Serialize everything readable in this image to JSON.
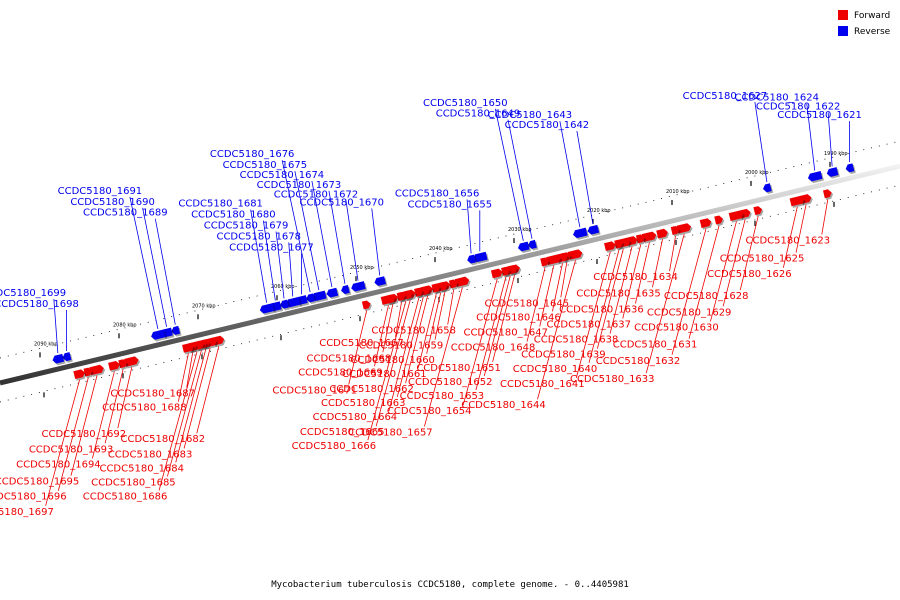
{
  "legend": [
    {
      "label": "Forward",
      "color": "#ee0000"
    },
    {
      "label": "Reverse",
      "color": "#0000ee"
    }
  ],
  "caption": "Mycobacterium tuberculosis CCDC5180, complete genome. - 0..4405981",
  "axis_ticks": [
    "1990 kbp",
    "2000 kbp",
    "2010 kbp",
    "2020 kbp",
    "2030 kbp",
    "2040 kbp",
    "2050 kbp",
    "2060 kbp",
    "2070 kbp",
    "2080 kbp",
    "2090 kbp"
  ],
  "genes": [
    {
      "id": "CCDC5180_1621",
      "strand": "reverse",
      "pos": 0.035
    },
    {
      "id": "CCDC5180_1622",
      "strand": "reverse",
      "pos": 0.055
    },
    {
      "id": "CCDC5180_1623",
      "strand": "forward",
      "pos": 0.06
    },
    {
      "id": "CCDC5180_1624",
      "strand": "reverse",
      "pos": 0.075
    },
    {
      "id": "CCDC5180_1625",
      "strand": "forward",
      "pos": 0.085
    },
    {
      "id": "CCDC5180_1626",
      "strand": "forward",
      "pos": 0.095
    },
    {
      "id": "CCDC5180_1627",
      "strand": "reverse",
      "pos": 0.13
    },
    {
      "id": "CCDC5180_1628",
      "strand": "forward",
      "pos": 0.14
    },
    {
      "id": "CCDC5180_1629",
      "strand": "forward",
      "pos": 0.155
    },
    {
      "id": "CCDC5180_1630",
      "strand": "forward",
      "pos": 0.165
    },
    {
      "id": "CCDC5180_1631",
      "strand": "forward",
      "pos": 0.185
    },
    {
      "id": "CCDC5180_1632",
      "strand": "forward",
      "pos": 0.2
    },
    {
      "id": "CCDC5180_1633",
      "strand": "forward",
      "pos": 0.225
    },
    {
      "id": "CCDC5180_1634",
      "strand": "forward",
      "pos": 0.235
    },
    {
      "id": "CCDC5180_1635",
      "strand": "forward",
      "pos": 0.25
    },
    {
      "id": "CCDC5180_1636",
      "strand": "forward",
      "pos": 0.265
    },
    {
      "id": "CCDC5180_1637",
      "strand": "forward",
      "pos": 0.275
    },
    {
      "id": "CCDC5180_1638",
      "strand": "forward",
      "pos": 0.285
    },
    {
      "id": "CCDC5180_1639",
      "strand": "forward",
      "pos": 0.295
    },
    {
      "id": "CCDC5180_1640",
      "strand": "forward",
      "pos": 0.3
    },
    {
      "id": "CCDC5180_1641",
      "strand": "forward",
      "pos": 0.31
    },
    {
      "id": "CCDC5180_1642",
      "strand": "reverse",
      "pos": 0.33
    },
    {
      "id": "CCDC5180_1643",
      "strand": "reverse",
      "pos": 0.345
    },
    {
      "id": "CCDC5180_1644",
      "strand": "forward",
      "pos": 0.35
    },
    {
      "id": "CCDC5180_1645",
      "strand": "forward",
      "pos": 0.36
    },
    {
      "id": "CCDC5180_1646",
      "strand": "forward",
      "pos": 0.365
    },
    {
      "id": "CCDC5180_1647",
      "strand": "forward",
      "pos": 0.375
    },
    {
      "id": "CCDC5180_1648",
      "strand": "forward",
      "pos": 0.385
    },
    {
      "id": "CCDC5180_1649",
      "strand": "reverse",
      "pos": 0.4
    },
    {
      "id": "CCDC5180_1650",
      "strand": "reverse",
      "pos": 0.41
    },
    {
      "id": "CCDC5180_1651",
      "strand": "forward",
      "pos": 0.42
    },
    {
      "id": "CCDC5180_1652",
      "strand": "forward",
      "pos": 0.425
    },
    {
      "id": "CCDC5180_1653",
      "strand": "forward",
      "pos": 0.43
    },
    {
      "id": "CCDC5180_1654",
      "strand": "forward",
      "pos": 0.44
    },
    {
      "id": "CCDC5180_1655",
      "strand": "reverse",
      "pos": 0.46
    },
    {
      "id": "CCDC5180_1656",
      "strand": "reverse",
      "pos": 0.47
    },
    {
      "id": "CCDC5180_1657",
      "strand": "forward",
      "pos": 0.48
    },
    {
      "id": "CCDC5180_1658",
      "strand": "forward",
      "pos": 0.49
    },
    {
      "id": "CCDC5180_1659",
      "strand": "forward",
      "pos": 0.5
    },
    {
      "id": "CCDC5180_1660",
      "strand": "forward",
      "pos": 0.505
    },
    {
      "id": "CCDC5180_1661",
      "strand": "forward",
      "pos": 0.51
    },
    {
      "id": "CCDC5180_1662",
      "strand": "forward",
      "pos": 0.52
    },
    {
      "id": "CCDC5180_1663",
      "strand": "forward",
      "pos": 0.525
    },
    {
      "id": "CCDC5180_1664",
      "strand": "forward",
      "pos": 0.53
    },
    {
      "id": "CCDC5180_1665",
      "strand": "forward",
      "pos": 0.54
    },
    {
      "id": "CCDC5180_1666",
      "strand": "forward",
      "pos": 0.545
    },
    {
      "id": "CCDC5180_1667",
      "strand": "forward",
      "pos": 0.55
    },
    {
      "id": "CCDC5180_1668",
      "strand": "forward",
      "pos": 0.56
    },
    {
      "id": "CCDC5180_1669",
      "strand": "forward",
      "pos": 0.565
    },
    {
      "id": "CCDC5180_1670",
      "strand": "reverse",
      "pos": 0.575
    },
    {
      "id": "CCDC5180_1671",
      "strand": "forward",
      "pos": 0.59
    },
    {
      "id": "CCDC5180_1672",
      "strand": "reverse",
      "pos": 0.6
    },
    {
      "id": "CCDC5180_1673",
      "strand": "reverse",
      "pos": 0.615
    },
    {
      "id": "CCDC5180_1674",
      "strand": "reverse",
      "pos": 0.63
    },
    {
      "id": "CCDC5180_1675",
      "strand": "reverse",
      "pos": 0.645
    },
    {
      "id": "CCDC5180_1676",
      "strand": "reverse",
      "pos": 0.655
    },
    {
      "id": "CCDC5180_1677",
      "strand": "reverse",
      "pos": 0.665
    },
    {
      "id": "CCDC5180_1678",
      "strand": "reverse",
      "pos": 0.675
    },
    {
      "id": "CCDC5180_1679",
      "strand": "reverse",
      "pos": 0.685
    },
    {
      "id": "CCDC5180_1680",
      "strand": "reverse",
      "pos": 0.695
    },
    {
      "id": "CCDC5180_1681",
      "strand": "reverse",
      "pos": 0.705
    },
    {
      "id": "CCDC5180_1682",
      "strand": "forward",
      "pos": 0.76
    },
    {
      "id": "CCDC5180_1683",
      "strand": "forward",
      "pos": 0.77
    },
    {
      "id": "CCDC5180_1684",
      "strand": "forward",
      "pos": 0.775
    },
    {
      "id": "CCDC5180_1685",
      "strand": "forward",
      "pos": 0.78
    },
    {
      "id": "CCDC5180_1686",
      "strand": "forward",
      "pos": 0.785
    },
    {
      "id": "CCDC5180_1687",
      "strand": "forward",
      "pos": 0.79
    },
    {
      "id": "CCDC5180_1688",
      "strand": "forward",
      "pos": 0.795
    },
    {
      "id": "CCDC5180_1689",
      "strand": "reverse",
      "pos": 0.81
    },
    {
      "id": "CCDC5180_1690",
      "strand": "reverse",
      "pos": 0.82
    },
    {
      "id": "CCDC5180_1691",
      "strand": "reverse",
      "pos": 0.83
    },
    {
      "id": "CCDC5180_1692",
      "strand": "forward",
      "pos": 0.86
    },
    {
      "id": "CCDC5180_1693",
      "strand": "forward",
      "pos": 0.87
    },
    {
      "id": "CCDC5180_1694",
      "strand": "forward",
      "pos": 0.88
    },
    {
      "id": "CCDC5180_1695",
      "strand": "forward",
      "pos": 0.9
    },
    {
      "id": "CCDC5180_1696",
      "strand": "forward",
      "pos": 0.91
    },
    {
      "id": "CCDC5180_1697",
      "strand": "forward",
      "pos": 0.92
    },
    {
      "id": "CCDC5180_1698",
      "strand": "reverse",
      "pos": 0.935
    },
    {
      "id": "CCDC5180_1699",
      "strand": "reverse",
      "pos": 0.945
    }
  ]
}
